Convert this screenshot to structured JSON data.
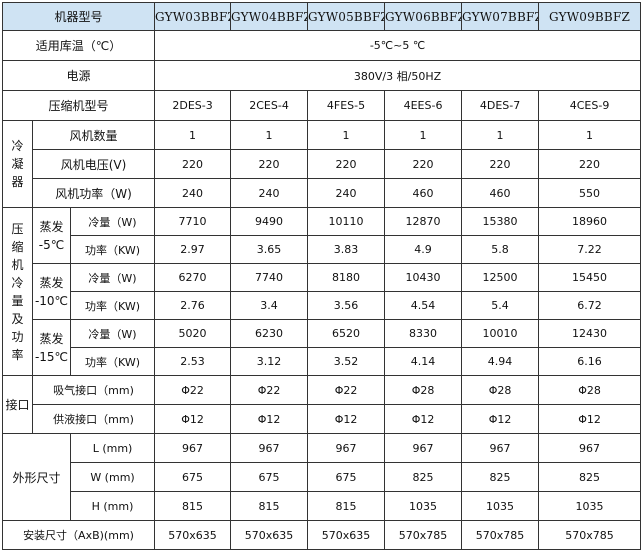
{
  "header": {
    "label": "机器型号",
    "models": [
      "GYW03BBFZ",
      "GYW04BBFZ",
      "GYW05BBFZ",
      "GYW06BBFZ",
      "GYW07BBFZ",
      "GYW09BBFZ"
    ]
  },
  "temp_range": {
    "label": "适用库温（℃）",
    "value": "-5℃~5 ℃"
  },
  "power": {
    "label": "电源",
    "value": "380V/3 相/50HZ"
  },
  "compressor": {
    "label": "压缩机型号",
    "values": [
      "2DES-3",
      "2CES-4",
      "4FES-5",
      "4EES-6",
      "4DES-7",
      "4CES-9"
    ]
  },
  "condenser": {
    "group_label": [
      "冷",
      "凝",
      "器"
    ],
    "rows": [
      {
        "label": "风机数量",
        "values": [
          "1",
          "1",
          "1",
          "1",
          "1",
          "1"
        ]
      },
      {
        "label": "风机电压(V)",
        "values": [
          "220",
          "220",
          "220",
          "220",
          "220",
          "220"
        ]
      },
      {
        "label": "风机功率（W)",
        "values": [
          "240",
          "240",
          "240",
          "460",
          "460",
          "550"
        ]
      }
    ]
  },
  "cooling": {
    "group_label": [
      "压",
      "缩",
      "机",
      "冷",
      "量",
      "及",
      "功",
      "率"
    ],
    "blocks": [
      {
        "evap": [
          "蒸发",
          "-5℃"
        ],
        "cap_label": "冷量（W)",
        "cap_values": [
          "7710",
          "9490",
          "10110",
          "12870",
          "15380",
          "18960"
        ],
        "pow_label": "功率（KW)",
        "pow_values": [
          "2.97",
          "3.65",
          "3.83",
          "4.9",
          "5.8",
          "7.22"
        ]
      },
      {
        "evap": [
          "蒸发",
          "-10℃"
        ],
        "cap_label": "冷量（W)",
        "cap_values": [
          "6270",
          "7740",
          "8180",
          "10430",
          "12500",
          "15450"
        ],
        "pow_label": "功率（KW)",
        "pow_values": [
          "2.76",
          "3.4",
          "3.56",
          "4.54",
          "5.4",
          "6.72"
        ]
      },
      {
        "evap": [
          "蒸发",
          "-15℃"
        ],
        "cap_label": "冷量（W)",
        "cap_values": [
          "5020",
          "6230",
          "6520",
          "8330",
          "10010",
          "12430"
        ],
        "pow_label": "功率（KW)",
        "pow_values": [
          "2.53",
          "3.12",
          "3.52",
          "4.14",
          "4.94",
          "6.16"
        ]
      }
    ]
  },
  "ports": {
    "group_label": "接口",
    "rows": [
      {
        "label": "吸气接口（mm)",
        "values": [
          "Φ22",
          "Φ22",
          "Φ22",
          "Φ28",
          "Φ28",
          "Φ28"
        ]
      },
      {
        "label": "供液接口（mm)",
        "values": [
          "Φ12",
          "Φ12",
          "Φ12",
          "Φ12",
          "Φ12",
          "Φ12"
        ]
      }
    ]
  },
  "dimensions": {
    "group_label": "外形尺寸",
    "rows": [
      {
        "label": "L (mm)",
        "values": [
          "967",
          "967",
          "967",
          "967",
          "967",
          "967"
        ]
      },
      {
        "label": "W (mm)",
        "values": [
          "675",
          "675",
          "675",
          "825",
          "825",
          "825"
        ]
      },
      {
        "label": "H (mm)",
        "values": [
          "815",
          "815",
          "815",
          "1035",
          "1035",
          "1035"
        ]
      }
    ]
  },
  "install": {
    "label": "安装尺寸（AxB)(mm)",
    "values": [
      "570x635",
      "570x635",
      "570x635",
      "570x785",
      "570x785",
      "570x785"
    ]
  }
}
